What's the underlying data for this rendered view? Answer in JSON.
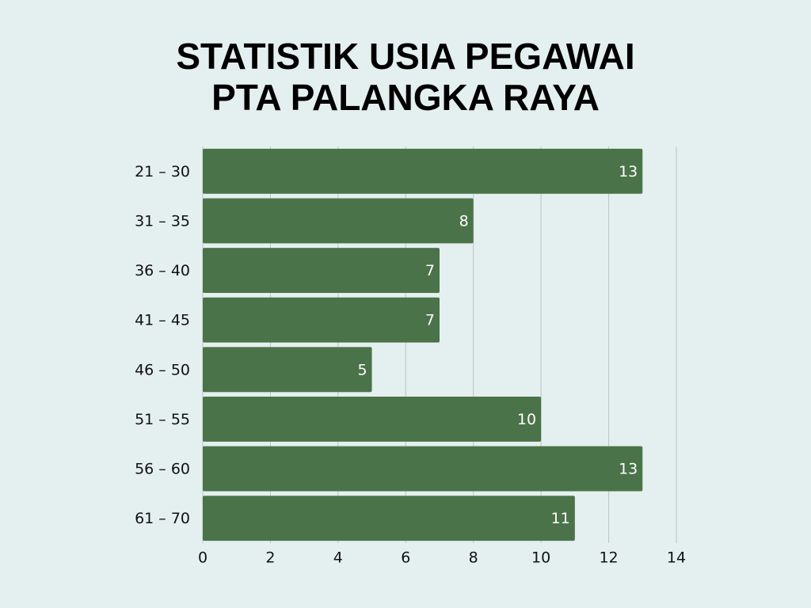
{
  "chart_data": {
    "type": "hbar",
    "title": [
      "STATISTIK USIA PEGAWAI",
      "PTA PALANGKA RAYA"
    ],
    "categories": [
      "21 – 30",
      "31 – 35",
      "36 – 40",
      "41 – 45",
      "46 – 50",
      "51 – 55",
      "56 – 60",
      "61 – 70"
    ],
    "values": [
      13,
      8,
      7,
      7,
      5,
      10,
      13,
      11
    ],
    "color": "#4b7349",
    "xlim": [
      0,
      14
    ],
    "xticks": [
      0,
      2,
      4,
      6,
      8,
      10,
      12,
      14
    ],
    "grid": true
  }
}
